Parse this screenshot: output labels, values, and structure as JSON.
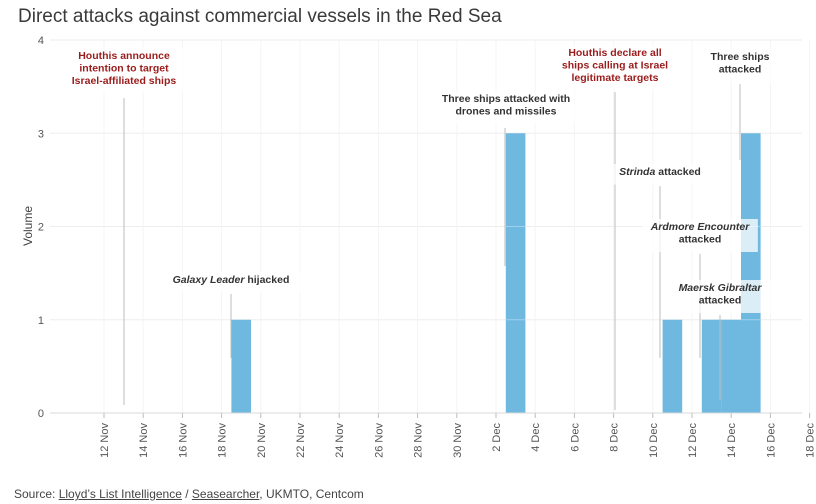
{
  "title": "Direct attacks against commercial vessels in the Red Sea",
  "source": {
    "prefix": "Source: ",
    "link1": "Lloyd’s List Intelligence",
    "sep": " / ",
    "link2": "Seasearcher",
    "rest": ", UKMTO, Centcom"
  },
  "chart_data": {
    "type": "bar",
    "title": "Direct attacks against commercial vessels in the Red Sea",
    "ylabel": "Volume",
    "xlabel": "",
    "ylim": [
      0,
      4
    ],
    "yticks": [
      "0",
      "1",
      "2",
      "3",
      "4"
    ],
    "xticks": [
      "12 Nov",
      "14 Nov",
      "16 Nov",
      "18 Nov",
      "20 Nov",
      "22 Nov",
      "24 Nov",
      "26 Nov",
      "28 Nov",
      "30 Nov",
      "2 Dec",
      "4 Dec",
      "6 Dec",
      "8 Dec",
      "10 Dec",
      "12 Dec",
      "14 Dec",
      "16 Dec",
      "18 Dec"
    ],
    "bar_color": "#6fb8e0",
    "bars": [
      {
        "date": "19 Nov",
        "value": 1
      },
      {
        "date": "3 Dec",
        "value": 3
      },
      {
        "date": "11 Dec",
        "value": 1
      },
      {
        "date": "13 Dec",
        "value": 1
      },
      {
        "date": "14 Dec",
        "value": 1
      },
      {
        "date": "15 Dec",
        "value": 3
      }
    ],
    "annotations": [
      {
        "lines": [
          "Houthis announce",
          "intention to target",
          "Israel-affiliated ships"
        ],
        "date": "14 Nov",
        "color": "#9b1c1c"
      },
      {
        "lines": [
          "Galaxy Leader hijacked"
        ],
        "date": "19 Nov",
        "color": "#333333"
      },
      {
        "lines": [
          "Three ships attacked with",
          "drones and missiles"
        ],
        "date": "3 Dec",
        "color": "#333333"
      },
      {
        "lines": [
          "Houthis declare all",
          "ships calling at Israel",
          "legitimate targets"
        ],
        "date": "9 Dec",
        "color": "#9b1c1c"
      },
      {
        "lines": [
          "Strinda attacked"
        ],
        "date": "11 Dec",
        "color": "#333333"
      },
      {
        "lines": [
          "Ardmore Encounter",
          "attacked"
        ],
        "date": "13 Dec",
        "color": "#333333"
      },
      {
        "lines": [
          "Maersk Gibraltar",
          "attacked"
        ],
        "date": "14 Dec",
        "color": "#333333"
      },
      {
        "lines": [
          "Three ships",
          "attacked"
        ],
        "date": "15 Dec",
        "color": "#333333"
      }
    ]
  }
}
